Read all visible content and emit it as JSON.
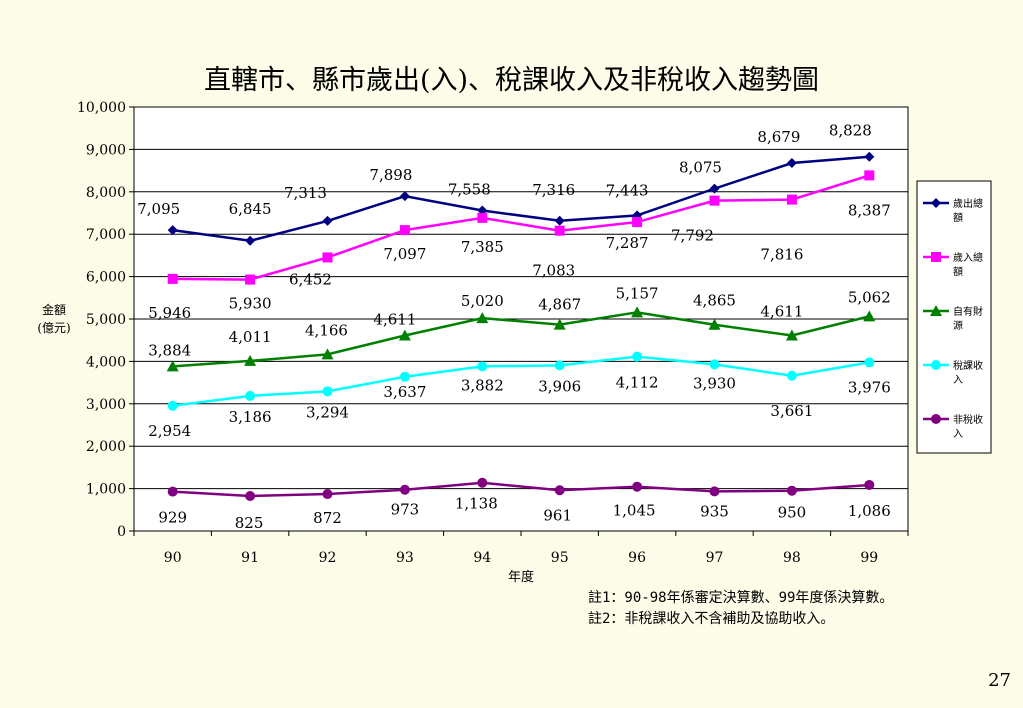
{
  "chart_data": {
    "type": "line",
    "title": "直轄市、縣市歲出(入)、稅課收入及非稅收入趨勢圖",
    "xlabel": "年度",
    "ylabel": "金額\n(億元)",
    "ylim": [
      0,
      10000
    ],
    "yticks": [
      "0",
      "1,000",
      "2,000",
      "3,000",
      "4,000",
      "5,000",
      "6,000",
      "7,000",
      "8,000",
      "9,000",
      "10,000"
    ],
    "categories": [
      "90",
      "91",
      "92",
      "93",
      "94",
      "95",
      "96",
      "97",
      "98",
      "99"
    ],
    "legend_position": "right",
    "series": [
      {
        "name": "歲出總額",
        "legend_lines": [
          "歲出總",
          "額"
        ],
        "color": "#000080",
        "marker": "diamond",
        "values": [
          7095,
          6845,
          7313,
          7898,
          7558,
          7316,
          7443,
          8075,
          8679,
          8828
        ],
        "labels": [
          "7,095",
          "6,845",
          "7,313",
          "7,898",
          "7,558",
          "7,316",
          "7,443",
          "8,075",
          "8,679",
          "8,828"
        ]
      },
      {
        "name": "歲入總額",
        "legend_lines": [
          "歲入總",
          "額"
        ],
        "color": "#ff00ff",
        "marker": "square",
        "values": [
          5946,
          5930,
          6452,
          7097,
          7385,
          7083,
          7287,
          7792,
          7816,
          8387
        ],
        "labels": [
          "5,946",
          "5,930",
          "6,452",
          "7,097",
          "7,385",
          "7,083",
          "7,287",
          "7,792",
          "7,816",
          "8,387"
        ]
      },
      {
        "name": "自有財源",
        "legend_lines": [
          "自有財",
          "源"
        ],
        "color": "#008000",
        "marker": "triangle",
        "values": [
          3884,
          4011,
          4166,
          4611,
          5020,
          4867,
          5157,
          4865,
          4611,
          5062
        ],
        "labels": [
          "3,884",
          "4,011",
          "4,166",
          "4,611",
          "5,020",
          "4,867",
          "5,157",
          "4,865",
          "4,611",
          "5,062"
        ]
      },
      {
        "name": "稅課收入",
        "legend_lines": [
          "稅課收",
          "入"
        ],
        "color": "#00ffff",
        "marker": "circle",
        "values": [
          2954,
          3186,
          3294,
          3637,
          3882,
          3906,
          4112,
          3930,
          3661,
          3976
        ],
        "labels": [
          "2,954",
          "3,186",
          "3,294",
          "3,637",
          "3,882",
          "3,906",
          "4,112",
          "3,930",
          "3,661",
          "3,976"
        ]
      },
      {
        "name": "非稅收入",
        "legend_lines": [
          "非稅收",
          "入"
        ],
        "color": "#800080",
        "marker": "circle",
        "values": [
          929,
          825,
          872,
          973,
          1138,
          961,
          1045,
          935,
          950,
          1086
        ],
        "labels": [
          "929",
          "825",
          "872",
          "973",
          "1,138",
          "961",
          "1,045",
          "935",
          "950",
          "1,086"
        ]
      }
    ]
  },
  "notes": [
    "註1：90-98年係審定決算數、99年度係決算數。",
    "註2：非稅課收入不含補助及協助收入。"
  ],
  "page_number": "27"
}
